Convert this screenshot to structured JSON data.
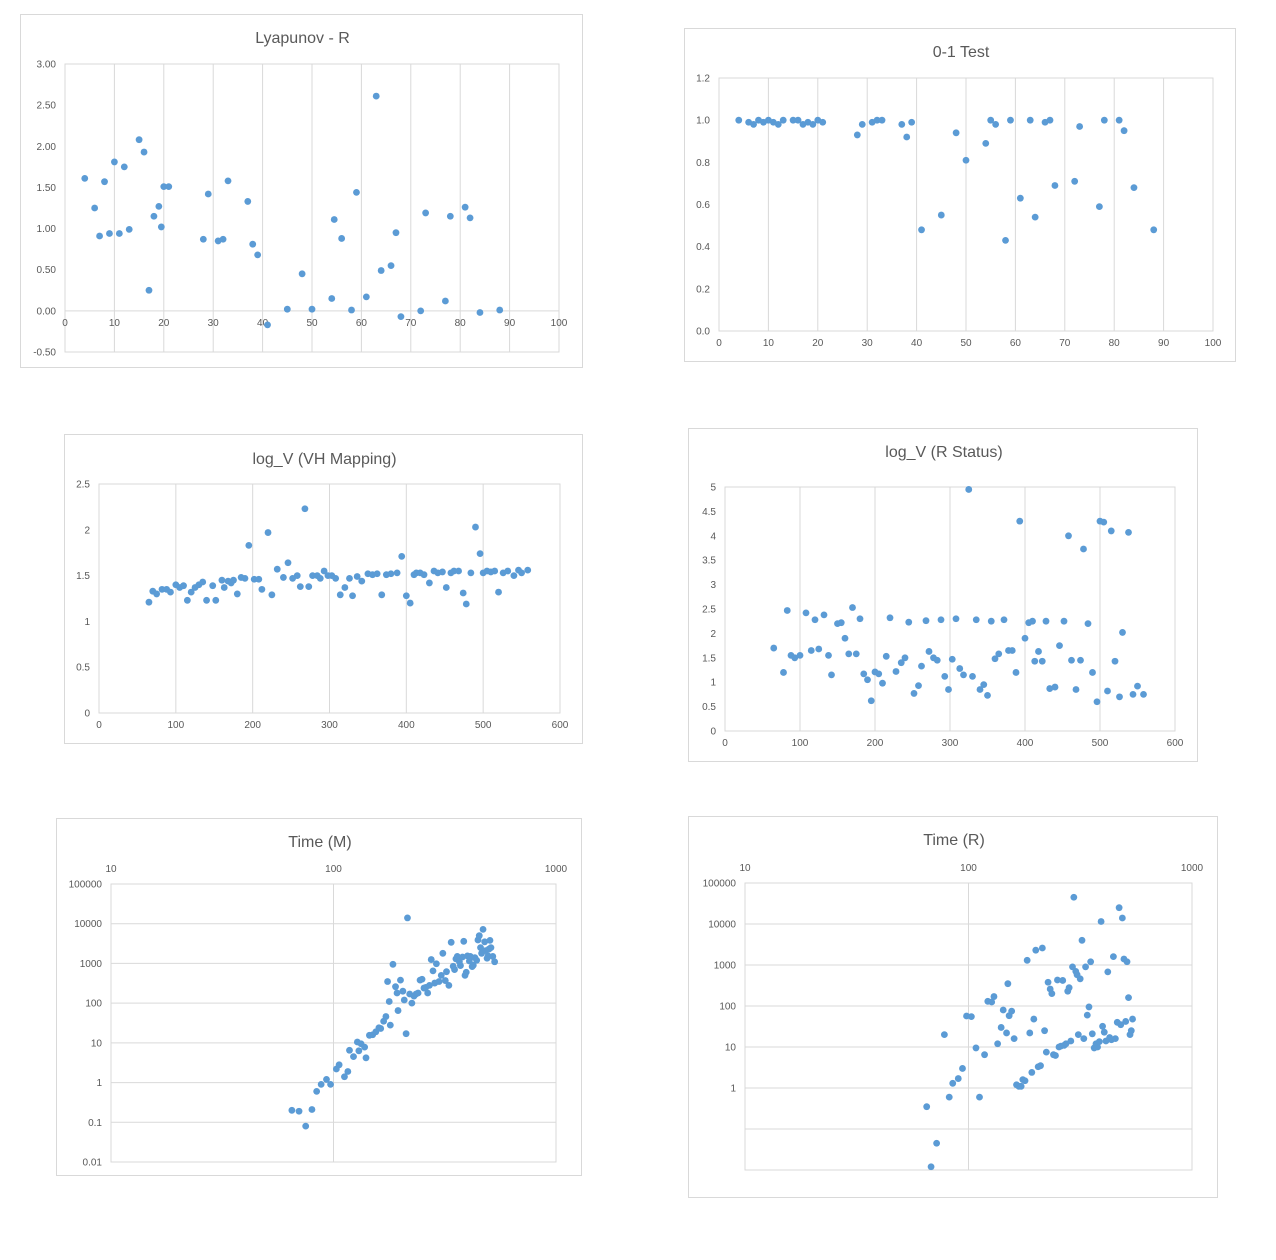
{
  "chart_data": [
    {
      "type": "scatter",
      "title": "Lyapunov - R",
      "xlim": [
        0,
        100
      ],
      "ylim": [
        -0.5,
        3.0
      ],
      "xticks": [
        0,
        10,
        20,
        30,
        40,
        50,
        60,
        70,
        80,
        90,
        100
      ],
      "yticks": [
        -0.5,
        0,
        0.5,
        1,
        1.5,
        2,
        2.5,
        3
      ],
      "ytick_labels": [
        "-0.50",
        "0.00",
        "0.50",
        "1.00",
        "1.50",
        "2.00",
        "2.50",
        "3.00"
      ],
      "grid": "vertical",
      "marker_color": "#5b9bd5",
      "x": [
        4,
        6,
        7,
        8,
        9,
        10,
        11,
        12,
        13,
        15,
        16,
        17,
        18,
        19,
        19.5,
        20,
        21,
        28,
        29,
        31,
        32,
        33,
        37,
        38,
        39,
        41,
        45,
        48,
        50,
        54,
        54.5,
        56,
        58,
        59,
        61,
        63,
        64,
        66,
        67,
        68,
        72,
        73,
        77,
        78,
        81,
        82,
        84,
        88
      ],
      "y": [
        1.61,
        1.25,
        0.91,
        1.57,
        0.94,
        1.81,
        0.94,
        1.75,
        0.99,
        2.08,
        1.93,
        0.25,
        1.15,
        1.27,
        1.02,
        1.51,
        1.51,
        0.87,
        1.42,
        0.85,
        0.87,
        1.58,
        1.33,
        0.81,
        0.68,
        -0.17,
        0.02,
        0.45,
        0.02,
        0.15,
        1.11,
        0.88,
        0.01,
        1.44,
        0.17,
        2.61,
        0.49,
        0.55,
        0.95,
        -0.07,
        0.0,
        1.19,
        0.12,
        1.15,
        1.26,
        1.13,
        -0.02,
        0.01
      ]
    },
    {
      "type": "scatter",
      "title": "0-1 Test",
      "xlim": [
        0,
        100
      ],
      "ylim": [
        0,
        1.2
      ],
      "xticks": [
        0,
        10,
        20,
        30,
        40,
        50,
        60,
        70,
        80,
        90,
        100
      ],
      "yticks": [
        0,
        0.2,
        0.4,
        0.6,
        0.8,
        1.0,
        1.2
      ],
      "ytick_labels": [
        "0.0",
        "0.2",
        "0.4",
        "0.6",
        "0.8",
        "1.0",
        "1.2"
      ],
      "grid": "vertical",
      "marker_color": "#5b9bd5",
      "x": [
        4,
        6,
        7,
        8,
        9,
        10,
        11,
        12,
        13,
        15,
        16,
        17,
        18,
        19,
        20,
        21,
        28,
        29,
        31,
        32,
        33,
        37,
        38,
        39,
        41,
        45,
        48,
        50,
        54,
        55,
        56,
        58,
        59,
        61,
        63,
        64,
        66,
        67,
        68,
        72,
        73,
        77,
        78,
        81,
        82,
        84,
        88
      ],
      "y": [
        1.0,
        0.99,
        0.98,
        1.0,
        0.99,
        1.0,
        0.99,
        0.98,
        1.0,
        1.0,
        1.0,
        0.98,
        0.99,
        0.98,
        1.0,
        0.99,
        0.93,
        0.98,
        0.99,
        1.0,
        1.0,
        0.98,
        0.92,
        0.99,
        0.48,
        0.55,
        0.94,
        0.81,
        0.89,
        1.0,
        0.98,
        0.43,
        1.0,
        0.63,
        1.0,
        0.54,
        0.99,
        1.0,
        0.69,
        0.71,
        0.97,
        0.59,
        1.0,
        1.0,
        0.95,
        0.68,
        0.48
      ]
    },
    {
      "type": "scatter",
      "title": "log_V (VH Mapping)",
      "xlim": [
        0,
        600
      ],
      "ylim": [
        0,
        2.5
      ],
      "xticks": [
        0,
        100,
        200,
        300,
        400,
        500,
        600
      ],
      "yticks": [
        0,
        0.5,
        1,
        1.5,
        2,
        2.5
      ],
      "ytick_labels": [
        "0",
        "0.5",
        "1",
        "1.5",
        "2",
        "2.5"
      ],
      "grid": "vertical",
      "marker_color": "#5b9bd5",
      "x": [
        65,
        70,
        75,
        82,
        88,
        93,
        100,
        105,
        110,
        115,
        120,
        125,
        130,
        135,
        140,
        148,
        152,
        160,
        163,
        168,
        172,
        175,
        180,
        185,
        190,
        195,
        202,
        208,
        212,
        220,
        225,
        232,
        240,
        246,
        252,
        258,
        262,
        268,
        273,
        278,
        284,
        288,
        293,
        298,
        303,
        308,
        314,
        320,
        326,
        330,
        336,
        342,
        350,
        356,
        362,
        368,
        374,
        380,
        388,
        394,
        400,
        405,
        410,
        413,
        418,
        423,
        430,
        436,
        441,
        447,
        452,
        458,
        462,
        468,
        474,
        478,
        484,
        490,
        496,
        500,
        505,
        510,
        515,
        520,
        526,
        532,
        540,
        546,
        550,
        558
      ],
      "y": [
        1.21,
        1.33,
        1.3,
        1.35,
        1.35,
        1.32,
        1.4,
        1.37,
        1.39,
        1.23,
        1.32,
        1.37,
        1.4,
        1.43,
        1.23,
        1.39,
        1.23,
        1.45,
        1.37,
        1.44,
        1.42,
        1.45,
        1.3,
        1.48,
        1.47,
        1.83,
        1.46,
        1.46,
        1.35,
        1.97,
        1.29,
        1.57,
        1.48,
        1.64,
        1.47,
        1.5,
        1.38,
        2.23,
        1.38,
        1.5,
        1.5,
        1.47,
        1.55,
        1.5,
        1.5,
        1.47,
        1.29,
        1.37,
        1.47,
        1.28,
        1.49,
        1.44,
        1.52,
        1.51,
        1.52,
        1.29,
        1.51,
        1.52,
        1.53,
        1.71,
        1.28,
        1.2,
        1.51,
        1.53,
        1.53,
        1.51,
        1.42,
        1.55,
        1.53,
        1.54,
        1.37,
        1.53,
        1.55,
        1.55,
        1.31,
        1.19,
        1.53,
        2.03,
        1.74,
        1.53,
        1.55,
        1.54,
        1.55,
        1.32,
        1.53,
        1.55,
        1.5,
        1.56,
        1.53,
        1.56
      ]
    },
    {
      "type": "scatter",
      "title": "log_V (R Status)",
      "xlim": [
        0,
        600
      ],
      "ylim": [
        0,
        5
      ],
      "xticks": [
        0,
        100,
        200,
        300,
        400,
        500,
        600
      ],
      "yticks": [
        0,
        0.5,
        1,
        1.5,
        2,
        2.5,
        3,
        3.5,
        4,
        4.5,
        5
      ],
      "ytick_labels": [
        "0",
        "0.5",
        "1",
        "1.5",
        "2",
        "2.5",
        "3",
        "3.5",
        "4",
        "4.5",
        "5"
      ],
      "grid": "vertical",
      "marker_color": "#5b9bd5",
      "x": [
        65,
        78,
        83,
        88,
        93,
        100,
        108,
        115,
        120,
        125,
        132,
        138,
        142,
        150,
        155,
        160,
        165,
        170,
        175,
        180,
        185,
        190,
        195,
        200,
        205,
        210,
        215,
        220,
        228,
        235,
        240,
        245,
        252,
        258,
        262,
        268,
        272,
        278,
        283,
        288,
        293,
        298,
        303,
        308,
        313,
        318,
        325,
        330,
        335,
        340,
        345,
        350,
        355,
        360,
        365,
        372,
        378,
        383,
        388,
        393,
        400,
        405,
        410,
        413,
        418,
        423,
        428,
        433,
        440,
        446,
        452,
        458,
        462,
        468,
        474,
        478,
        484,
        490,
        496,
        500,
        505,
        510,
        515,
        520,
        526,
        530,
        538,
        544,
        550,
        558
      ],
      "y": [
        1.7,
        1.2,
        2.47,
        1.55,
        1.5,
        1.55,
        2.42,
        1.65,
        2.28,
        1.68,
        2.38,
        1.55,
        1.15,
        2.2,
        2.22,
        1.9,
        1.58,
        2.53,
        1.58,
        2.3,
        1.17,
        1.05,
        0.62,
        1.21,
        1.17,
        0.98,
        1.53,
        2.32,
        1.22,
        1.4,
        1.5,
        2.23,
        0.77,
        0.93,
        1.33,
        2.26,
        1.63,
        1.5,
        1.45,
        2.28,
        1.12,
        0.85,
        1.47,
        2.3,
        1.28,
        1.15,
        4.95,
        1.12,
        2.28,
        0.85,
        0.95,
        0.73,
        2.25,
        1.48,
        1.58,
        2.28,
        1.65,
        1.65,
        1.2,
        4.3,
        1.9,
        2.22,
        2.25,
        1.43,
        1.63,
        1.43,
        2.25,
        0.87,
        0.9,
        1.75,
        2.25,
        4.0,
        1.45,
        0.85,
        1.45,
        3.73,
        2.2,
        1.2,
        0.6,
        4.3,
        4.28,
        0.82,
        4.1,
        1.43,
        0.7,
        2.02,
        4.07,
        0.75,
        0.92,
        0.75
      ]
    },
    {
      "type": "scatter",
      "title": "Time (M)",
      "xscale": "log",
      "yscale": "log",
      "xlim": [
        10,
        1000
      ],
      "ylim": [
        0.01,
        100000
      ],
      "xticks": [
        10,
        100,
        1000
      ],
      "xtick_labels": [
        "10",
        "100",
        "1000"
      ],
      "xaxis_position": "top",
      "yticks": [
        0.01,
        0.1,
        1,
        10,
        100,
        1000,
        10000,
        100000
      ],
      "ytick_labels": [
        "0.01",
        "0.1",
        "1",
        "10",
        "100",
        "1000",
        "10000",
        "100000"
      ],
      "grid": "both",
      "marker_color": "#5b9bd5",
      "x": [
        65,
        70,
        75,
        80,
        84,
        88,
        93,
        97,
        103,
        106,
        112,
        116,
        118,
        123,
        128,
        130,
        133,
        138,
        140,
        145,
        150,
        155,
        160,
        163,
        168,
        172,
        175,
        178,
        180,
        185,
        190,
        193,
        195,
        200,
        205,
        208,
        212,
        215,
        220,
        225,
        230,
        235,
        240,
        245,
        250,
        255,
        260,
        265,
        270,
        275,
        280,
        285,
        290,
        298,
        305,
        310,
        318,
        322,
        330,
        338,
        345,
        350,
        355,
        360,
        368,
        372,
        380,
        385,
        390,
        395,
        400,
        408,
        412,
        420,
        425,
        432,
        440,
        446,
        452,
        458,
        463,
        470,
        478,
        483,
        490,
        495,
        500,
        505,
        510,
        520,
        530
      ],
      "y": [
        0.2,
        0.19,
        0.08,
        0.21,
        0.6,
        0.9,
        1.2,
        0.9,
        2.2,
        2.8,
        1.4,
        1.9,
        6.5,
        4.5,
        10.5,
        6.3,
        9.5,
        7.8,
        4.2,
        15.5,
        16,
        19,
        24,
        23,
        35,
        46,
        350,
        110,
        28,
        950,
        260,
        180,
        65,
        380,
        200,
        120,
        17,
        14000,
        170,
        100,
        150,
        170,
        180,
        380,
        400,
        240,
        250,
        180,
        280,
        1250,
        650,
        320,
        980,
        350,
        500,
        1800,
        370,
        620,
        280,
        3400,
        850,
        700,
        1300,
        1500,
        1100,
        880,
        1450,
        3600,
        500,
        600,
        1550,
        1150,
        1500,
        830,
        900,
        1400,
        1200,
        3900,
        5000,
        2500,
        1800,
        7200,
        3500,
        2100,
        1350,
        1550,
        2300,
        3800,
        2500,
        1500,
        1100
      ]
    },
    {
      "type": "scatter",
      "title": "Time (R)",
      "xscale": "log",
      "yscale": "log",
      "xlim": [
        10,
        1000
      ],
      "ylim": [
        0.01,
        100000
      ],
      "xticks": [
        10,
        100,
        1000
      ],
      "xtick_labels": [
        "10",
        "100",
        "1000"
      ],
      "xaxis_position": "top",
      "yticks": [
        0.01,
        0.1,
        1,
        10,
        100,
        1000,
        10000,
        100000
      ],
      "ytick_labels": [
        "",
        "",
        "1",
        "10",
        "100",
        "1000",
        "10000",
        "100000"
      ],
      "grid": "both",
      "marker_color": "#5b9bd5",
      "x": [
        65,
        68,
        72,
        78,
        82,
        85,
        90,
        94,
        98,
        103,
        108,
        112,
        118,
        122,
        127,
        130,
        135,
        140,
        143,
        148,
        150,
        152,
        156,
        160,
        164,
        168,
        172,
        175,
        179,
        183,
        188,
        192,
        196,
        200,
        205,
        210,
        214,
        219,
        223,
        227,
        232,
        236,
        240,
        245,
        250,
        254,
        259,
        264,
        268,
        273,
        278,
        282,
        287,
        292,
        296,
        302,
        306,
        310,
        316,
        322,
        328,
        334,
        340,
        346,
        352,
        358,
        365,
        372,
        378,
        385,
        392,
        398,
        405,
        412,
        420,
        428,
        436,
        445,
        454,
        463,
        472,
        480,
        488,
        496,
        505,
        512,
        520,
        528,
        535,
        542
      ],
      "y": [
        0.35,
        0.012,
        0.045,
        20,
        0.6,
        1.3,
        1.7,
        3,
        57,
        55,
        9.5,
        0.6,
        6.5,
        130,
        125,
        170,
        12,
        30,
        80,
        22,
        350,
        58,
        75,
        16,
        1.2,
        1.1,
        1.1,
        1.6,
        1.5,
        1300,
        22,
        2.4,
        48,
        2300,
        3.3,
        3.5,
        2600,
        25,
        7.5,
        380,
        260,
        200,
        6.5,
        6.2,
        430,
        10,
        10.5,
        420,
        11,
        12,
        230,
        280,
        14,
        900,
        45000,
        700,
        580,
        20,
        460,
        4000,
        16,
        900,
        60,
        95,
        1200,
        21,
        9.5,
        12,
        10,
        13.5,
        11500,
        32,
        23,
        14,
        680,
        17,
        15,
        1600,
        16,
        40,
        25000,
        35,
        14000,
        1400,
        42,
        1200,
        160,
        20,
        25,
        48
      ]
    }
  ]
}
